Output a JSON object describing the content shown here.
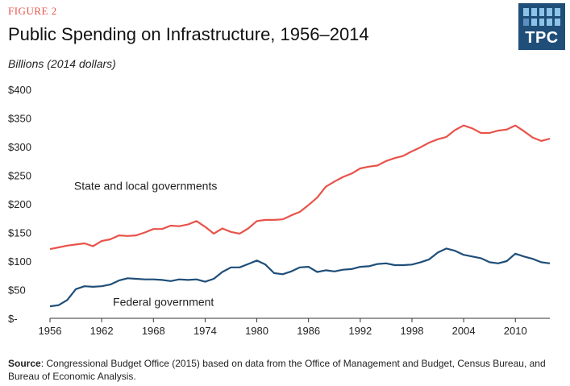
{
  "figure_label": "FIGURE 2",
  "title": "Public Spending on Infrastructure, 1956–2014",
  "units": "Billions (2014 dollars)",
  "logo_text": "TPC",
  "source_label": "Source",
  "source_text": ": Congressional Budget Office (2015) based on data from the Office of Management and Budget, Census Bureau, and Bureau of Economic Analysis.",
  "chart_data": {
    "type": "line",
    "title": "Public Spending on Infrastructure, 1956–2014",
    "ylabel": "Billions (2014 dollars)",
    "xlim": [
      1956,
      2014
    ],
    "ylim": [
      0,
      400
    ],
    "x_ticks": [
      1956,
      1962,
      1968,
      1974,
      1980,
      1986,
      1992,
      1998,
      2004,
      2010
    ],
    "x_tick_labels": [
      "1956",
      "1962",
      "1968",
      "1974",
      "1980",
      "1986",
      "1992",
      "1998",
      "2004",
      "2010"
    ],
    "y_ticks": [
      0,
      50,
      100,
      150,
      200,
      250,
      300,
      350,
      400
    ],
    "y_tick_labels": [
      "$-",
      "$50",
      "$100",
      "$150",
      "$200",
      "$250",
      "$300",
      "$350",
      "$400"
    ],
    "grid": false,
    "x": [
      1956,
      1957,
      1958,
      1959,
      1960,
      1961,
      1962,
      1963,
      1964,
      1965,
      1966,
      1967,
      1968,
      1969,
      1970,
      1971,
      1972,
      1973,
      1974,
      1975,
      1976,
      1977,
      1978,
      1979,
      1980,
      1981,
      1982,
      1983,
      1984,
      1985,
      1986,
      1987,
      1988,
      1989,
      1990,
      1991,
      1992,
      1993,
      1994,
      1995,
      1996,
      1997,
      1998,
      1999,
      2000,
      2001,
      2002,
      2003,
      2004,
      2005,
      2006,
      2007,
      2008,
      2009,
      2010,
      2011,
      2012,
      2013,
      2014
    ],
    "series": [
      {
        "name": "State and local governments",
        "color": "#e8534a",
        "values": [
          121,
          124,
          127,
          129,
          131,
          126,
          135,
          138,
          145,
          144,
          145,
          150,
          156,
          156,
          162,
          161,
          164,
          170,
          160,
          148,
          157,
          151,
          148,
          157,
          170,
          172,
          172,
          173,
          180,
          186,
          198,
          211,
          230,
          239,
          247,
          253,
          262,
          265,
          267,
          275,
          280,
          284,
          292,
          299,
          307,
          313,
          317,
          329,
          337,
          332,
          324,
          324,
          328,
          330,
          337,
          327,
          316,
          310,
          314
        ]
      },
      {
        "name": "Federal government",
        "color": "#1f4e79",
        "values": [
          21,
          23,
          32,
          51,
          56,
          55,
          56,
          59,
          66,
          70,
          69,
          68,
          68,
          67,
          65,
          68,
          67,
          68,
          64,
          69,
          81,
          89,
          89,
          95,
          101,
          94,
          79,
          77,
          82,
          89,
          90,
          81,
          84,
          82,
          85,
          86,
          90,
          91,
          95,
          96,
          93,
          93,
          94,
          98,
          103,
          115,
          122,
          118,
          111,
          108,
          105,
          98,
          96,
          100,
          113,
          108,
          104,
          98,
          96
        ]
      }
    ],
    "annotations": [
      {
        "text": "State and local governments",
        "x": 1958.8,
        "y": 225
      },
      {
        "text": "Federal government",
        "x": 1963.3,
        "y": 22
      }
    ]
  }
}
